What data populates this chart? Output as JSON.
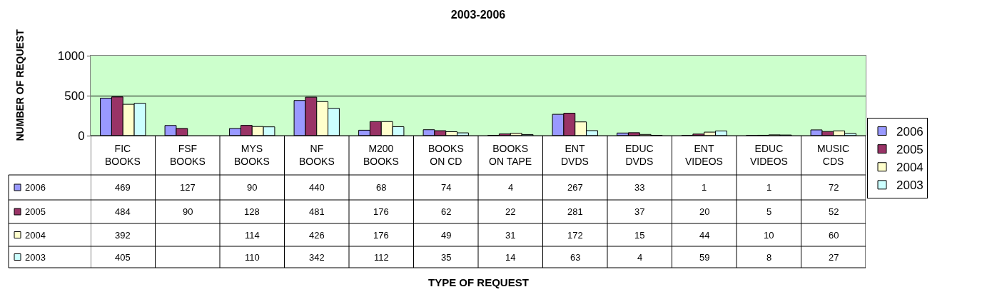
{
  "chart_data": {
    "type": "bar",
    "title": "2003-2006",
    "annotations": [
      "TYPE OF REQUEST"
    ],
    "ylabel": "NUMBER OF REQUEST",
    "categories": [
      "FIC\nBOOKS",
      "FSF\nBOOKS",
      "MYS\nBOOKS",
      "NF\nBOOKS",
      "M200\nBOOKS",
      "BOOKS\nON CD",
      "BOOKS\nON TAPE",
      "ENT\nDVDS",
      "EDUC\nDVDS",
      "ENT\nVIDEOS",
      "EDUC\nVIDEOS",
      "MUSIC\nCDS"
    ],
    "series": [
      {
        "name": "2006",
        "color": "#9999ff",
        "values": [
          469,
          127,
          90,
          440,
          68,
          74,
          4,
          267,
          33,
          1,
          1,
          72
        ]
      },
      {
        "name": "2005",
        "color": "#993366",
        "values": [
          484,
          90,
          128,
          481,
          176,
          62,
          22,
          281,
          37,
          20,
          5,
          52
        ]
      },
      {
        "name": "2004",
        "color": "#ffffcc",
        "values": [
          392,
          null,
          114,
          426,
          176,
          49,
          31,
          172,
          15,
          44,
          10,
          60
        ]
      },
      {
        "name": "2003",
        "color": "#ccffff",
        "values": [
          405,
          null,
          110,
          342,
          112,
          35,
          14,
          63,
          4,
          59,
          8,
          27
        ]
      }
    ],
    "ylim": [
      0,
      1000
    ],
    "yticks": [
      0,
      500,
      1000
    ],
    "grid": "y",
    "legend": "right",
    "data_labels": true
  }
}
